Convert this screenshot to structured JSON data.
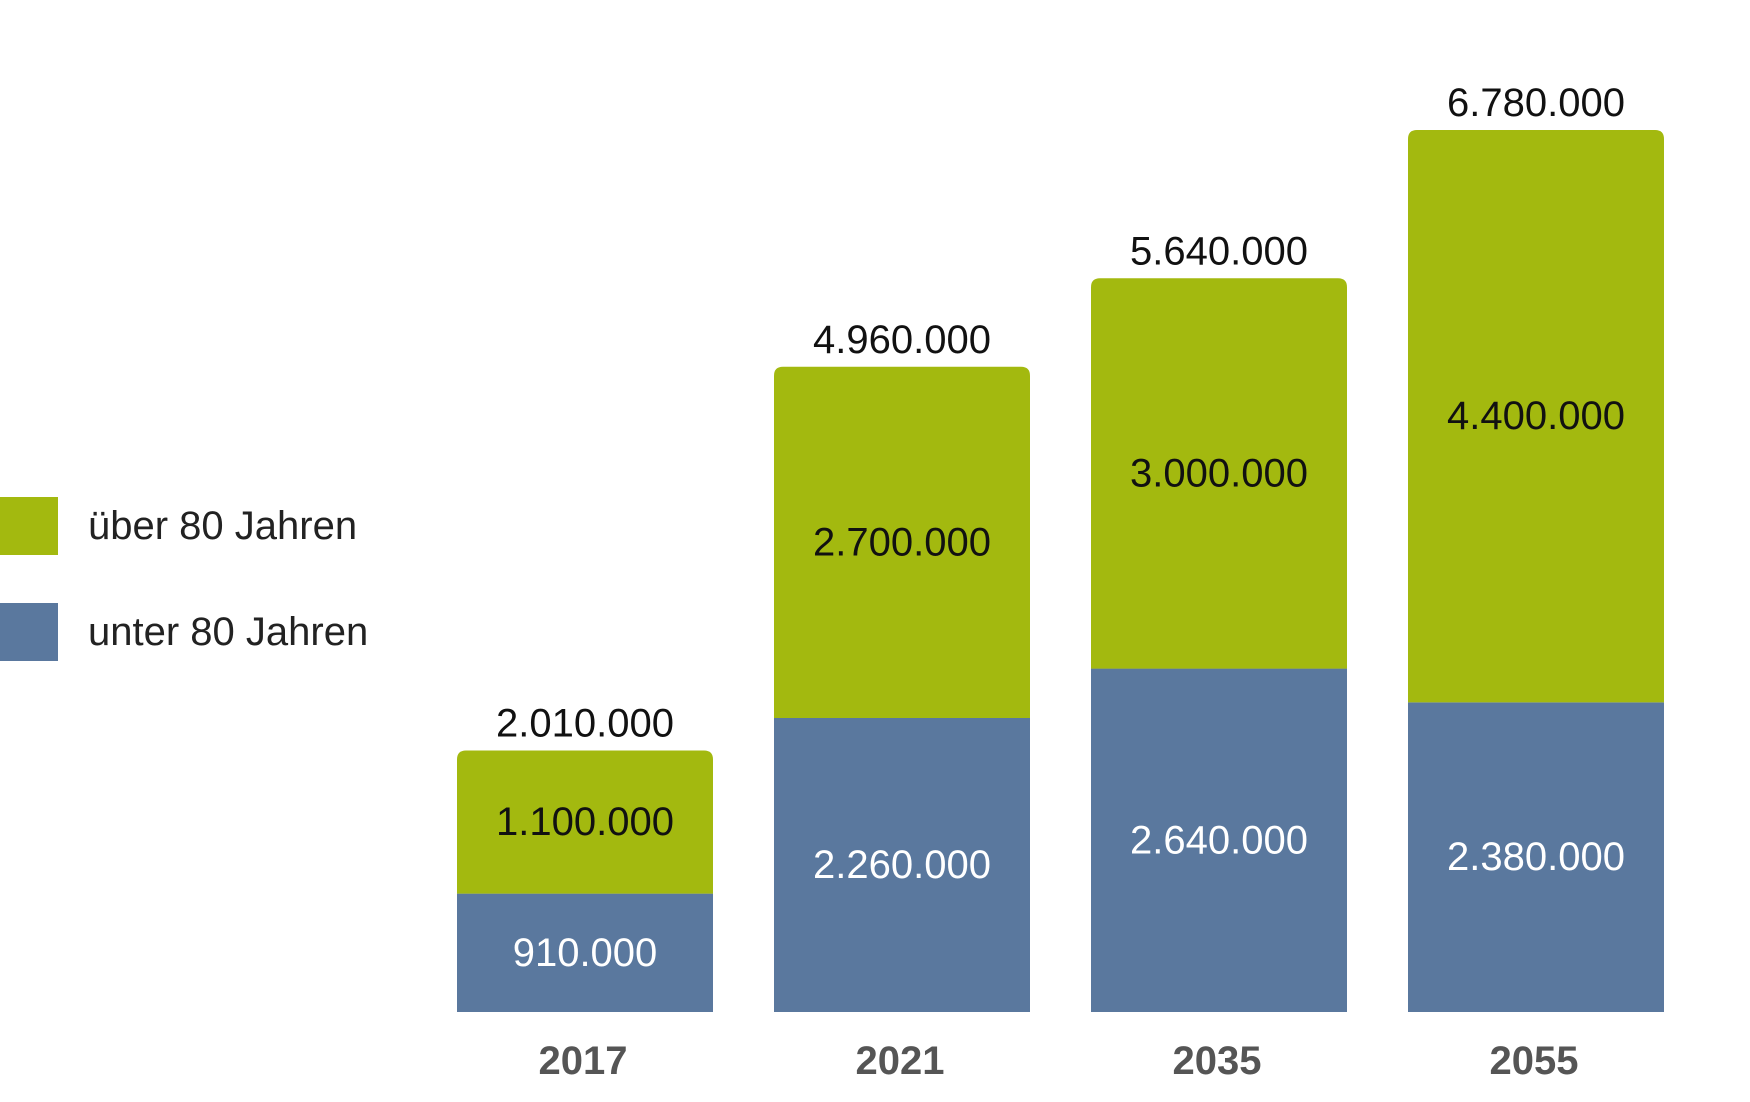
{
  "chart_data": {
    "type": "bar",
    "stacked": true,
    "categories": [
      "2017",
      "2021",
      "2035",
      "2055"
    ],
    "series": [
      {
        "name": "unter 80 Jahren",
        "values": [
          910000,
          2260000,
          2640000,
          2380000
        ],
        "value_labels": [
          "910.000",
          "2.260.000",
          "2.640.000",
          "2.380.000"
        ],
        "color": "#5a789e",
        "label_color": "#ffffff"
      },
      {
        "name": "über 80 Jahren",
        "values": [
          1100000,
          2700000,
          3000000,
          4400000
        ],
        "value_labels": [
          "1.100.000",
          "2.700.000",
          "3.000.000",
          "4.400.000"
        ],
        "color": "#a3b90f",
        "label_color": "#111111"
      }
    ],
    "totals": [
      2010000,
      4960000,
      5640000,
      6780000
    ],
    "total_labels": [
      "2.010.000",
      "4.960.000",
      "5.640.000",
      "6.780.000"
    ],
    "legend_order": [
      "über 80 Jahren",
      "unter 80 Jahren"
    ],
    "legend_position": "left",
    "ylim": [
      0,
      6780000
    ],
    "grid": false,
    "axis_labels_visible": false,
    "category_label_color": "#555555"
  },
  "legend": {
    "items": [
      {
        "label": "über 80 Jahren",
        "color": "#a3b90f"
      },
      {
        "label": "unter 80 Jahren",
        "color": "#5a789e"
      }
    ]
  }
}
